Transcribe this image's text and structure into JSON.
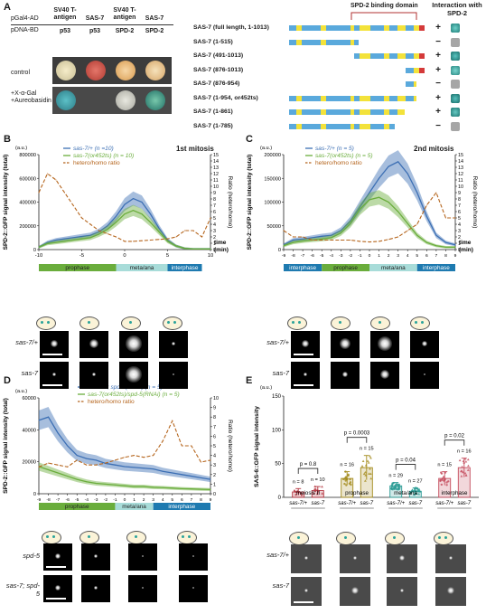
{
  "panelA": {
    "letter": "A",
    "row_labels": [
      "pGal4-AD",
      "pDNA-BD"
    ],
    "ad_columns": [
      "SV40 T-antigen",
      "SAS-7",
      "SV40 T-antigen",
      "SAS-7"
    ],
    "bd_columns": [
      "p53",
      "p53",
      "SPD-2",
      "SPD-2"
    ],
    "condition_labels": [
      "control",
      "+X-α-Gal +Aureobasidin"
    ],
    "domain_label": "SPD-2 binding domain",
    "interaction_header": "Interaction with SPD-2",
    "constructs": [
      {
        "name": "SAS-7 (full length, 1-1013)",
        "result": "+"
      },
      {
        "name": "SAS-7 (1-515)",
        "result": "−"
      },
      {
        "name": "SAS-7 (491-1013)",
        "result": "+"
      },
      {
        "name": "SAS-7 (876-1013)",
        "result": "+"
      },
      {
        "name": "SAS-7 (876-954)",
        "result": "−"
      },
      {
        "name": "SAS-7 (1-954, or452ts)",
        "result": "+"
      },
      {
        "name": "SAS-7 (1-861)",
        "result": "+"
      },
      {
        "name": "SAS-7 (1-785)",
        "result": "−"
      }
    ],
    "colors": {
      "blue": "#5aa9dc",
      "yellow": "#f3e23a",
      "red": "#d43a3a",
      "teal": "#2e8c87",
      "gray": "#a6a6a6"
    }
  },
  "panelB": {
    "letter": "B",
    "title": "1st mitosis",
    "row_labels": [
      "sas-7/+",
      "sas-7"
    ]
  },
  "panelC": {
    "letter": "C",
    "title": "2nd mitosis",
    "row_labels": [
      "sas-7/+",
      "sas-7"
    ]
  },
  "panelD": {
    "letter": "D",
    "row_labels": [
      "spd-5",
      "sas-7; spd-5"
    ]
  },
  "panelE": {
    "letter": "E",
    "row_labels": [
      "sas-7/+",
      "sas-7"
    ]
  },
  "chart_data": [
    {
      "id": "B",
      "type": "line",
      "ylabel": "SPD-2::GFP signal intensity (total)",
      "y_unit": "(a.u.)",
      "y2label": "Ratio (hetero/homo)",
      "xlabel": "time (min)",
      "xlim": [
        -10,
        10
      ],
      "ylim": [
        0,
        800000
      ],
      "y2lim": [
        0,
        15
      ],
      "xticks": [
        -10,
        -5,
        0,
        5,
        10
      ],
      "yticks": [
        "0",
        "200000",
        "400000",
        "600000",
        "800000"
      ],
      "y2ticks": [
        0,
        1,
        2,
        3,
        4,
        5,
        6,
        7,
        8,
        9,
        10,
        11,
        12,
        13,
        14,
        15
      ],
      "phases": [
        "prophase",
        "meta/ana",
        "interphase"
      ],
      "x": [
        -10,
        -9,
        -8,
        -7,
        -6,
        -5,
        -4,
        -3,
        -2,
        -1,
        0,
        1,
        2,
        3,
        4,
        5,
        6,
        7,
        8,
        9,
        10
      ],
      "series": [
        {
          "name": "sas-7/+ (n =10)",
          "color": "#3c6fb4",
          "values": [
            20000,
            60000,
            80000,
            90000,
            100000,
            110000,
            120000,
            150000,
            200000,
            280000,
            380000,
            430000,
            400000,
            300000,
            180000,
            80000,
            30000,
            10000,
            5000,
            5000,
            5000
          ]
        },
        {
          "name": "sas-7(or452ts) (n = 10)",
          "color": "#6aad3c",
          "values": [
            20000,
            50000,
            60000,
            70000,
            80000,
            90000,
            100000,
            130000,
            170000,
            230000,
            300000,
            330000,
            300000,
            230000,
            150000,
            70000,
            30000,
            10000,
            5000,
            5000,
            5000
          ]
        },
        {
          "name": "hetero/homo ratio",
          "color": "#b5651d",
          "axis": "right",
          "dashed": true,
          "values": [
            9,
            12,
            11,
            9,
            7,
            5,
            4,
            3,
            2.5,
            2,
            1.3,
            1.3,
            1.4,
            1.5,
            1.6,
            1.7,
            2,
            3,
            3,
            2,
            5
          ]
        }
      ]
    },
    {
      "id": "C",
      "type": "line",
      "ylabel": "SPD-2::GFP signal intensity (total)",
      "y_unit": "(a.u.)",
      "y2label": "Ratio (hetero/homo)",
      "xlabel": "time (min)",
      "xlim": [
        -9,
        9
      ],
      "ylim": [
        0,
        200000
      ],
      "y2lim": [
        0,
        15
      ],
      "xticks": [
        -9,
        -8,
        -7,
        -6,
        -5,
        -4,
        -3,
        -2,
        -1,
        0,
        1,
        2,
        3,
        4,
        5,
        6,
        7,
        8,
        9
      ],
      "yticks": [
        "0",
        "50000",
        "100000",
        "150000",
        "200000"
      ],
      "y2ticks": [
        0,
        1,
        2,
        3,
        4,
        5,
        6,
        7,
        8,
        9,
        10,
        11,
        12,
        13,
        14,
        15
      ],
      "phases": [
        "interphase",
        "prophase",
        "meta/ana",
        "interphase"
      ],
      "x": [
        -9,
        -8,
        -7,
        -6,
        -5,
        -4,
        -3,
        -2,
        -1,
        0,
        1,
        2,
        3,
        4,
        5,
        6,
        7,
        8,
        9
      ],
      "series": [
        {
          "name": "sas-7/+ (n = 5)",
          "color": "#3c6fb4",
          "values": [
            10000,
            20000,
            22000,
            25000,
            28000,
            30000,
            40000,
            60000,
            90000,
            120000,
            150000,
            175000,
            185000,
            160000,
            120000,
            70000,
            30000,
            15000,
            10000
          ]
        },
        {
          "name": "sas-7(or452ts) (n = 5)",
          "color": "#6aad3c",
          "values": [
            8000,
            15000,
            18000,
            20000,
            22000,
            25000,
            35000,
            55000,
            85000,
            105000,
            110000,
            100000,
            80000,
            55000,
            30000,
            15000,
            8000,
            5000,
            5000
          ]
        },
        {
          "name": "hetero/homo ratio",
          "color": "#b5651d",
          "axis": "right",
          "dashed": true,
          "values": [
            3,
            2,
            2,
            1.5,
            1.5,
            1.5,
            1.5,
            1.5,
            1.3,
            1.2,
            1.3,
            1.6,
            2,
            3,
            4,
            7,
            9,
            5,
            5
          ]
        }
      ]
    },
    {
      "id": "D",
      "type": "line",
      "ylabel": "SPD-2::GFP signal intensity (total)",
      "y_unit": "(a.u.)",
      "y2label": "Ratio (hetero/homo)",
      "xlim": [
        -9,
        9
      ],
      "ylim": [
        0,
        60000
      ],
      "y2lim": [
        0,
        10
      ],
      "xticks": [
        -9,
        -8,
        -7,
        -6,
        -5,
        -4,
        -3,
        -2,
        -1,
        0,
        1,
        2,
        3,
        4,
        5,
        6,
        7,
        8,
        9
      ],
      "yticks": [
        "0",
        "20000",
        "40000",
        "60000"
      ],
      "y2ticks": [
        0,
        1,
        2,
        3,
        4,
        5,
        6,
        7,
        8,
        9,
        10
      ],
      "phases": [
        "prophase",
        "meta/ana",
        "interphase"
      ],
      "x": [
        -9,
        -8,
        -7,
        -6,
        -5,
        -4,
        -3,
        -2,
        -1,
        0,
        1,
        2,
        3,
        4,
        5,
        6,
        7,
        8,
        9
      ],
      "series": [
        {
          "name": "sas-7/+; spd-5(RNAi) (n = 5)",
          "color": "#3c6fb4",
          "values": [
            46000,
            48000,
            38000,
            30000,
            24000,
            22000,
            21000,
            19000,
            18000,
            17000,
            16500,
            16000,
            15500,
            14000,
            13000,
            12000,
            11000,
            10000,
            9000
          ]
        },
        {
          "name": "sas-7(or452ts)/spd-5(RNAi) (n = 5)",
          "color": "#6aad3c",
          "values": [
            17000,
            15000,
            13000,
            11000,
            9000,
            7500,
            6500,
            6000,
            5500,
            5000,
            4500,
            4500,
            4000,
            3800,
            3500,
            3200,
            3000,
            2800,
            2600
          ]
        },
        {
          "name": "hetero/homo ratio",
          "color": "#b5651d",
          "axis": "right",
          "dashed": true,
          "values": [
            2.8,
            3.2,
            3,
            2.8,
            3.5,
            3,
            3,
            3.2,
            3.5,
            3.8,
            4,
            3.8,
            4,
            5.5,
            7.6,
            5,
            5,
            3.3,
            3.5
          ]
        }
      ]
    },
    {
      "id": "E",
      "type": "scatter",
      "ylabel": "SAS-6::GFP signal intensity",
      "y_unit": "(a.u.)",
      "ylim": [
        0,
        150
      ],
      "yticks": [
        "0",
        "50",
        "100",
        "150"
      ],
      "groups": [
        "meiosis II",
        "prophase",
        "meta/ana",
        "interphase"
      ],
      "categories": [
        "sas-7/+",
        "sas-7",
        "sas-7/+",
        "sas-7",
        "sas-7/+",
        "sas-7",
        "sas-7/+",
        "sas-7"
      ],
      "n": [
        8,
        10,
        16,
        15,
        29,
        27,
        15,
        16
      ],
      "means": [
        8,
        10,
        28,
        44,
        17,
        9,
        28,
        44
      ],
      "sd": [
        5,
        6,
        10,
        18,
        5,
        5,
        10,
        14
      ],
      "p_values": [
        "p = 0.8",
        "p = 0.0003",
        "p = 0.04",
        "p = 0.02"
      ],
      "colors": [
        "#b3313c",
        "#a38a1a",
        "#2c9c95",
        "#c44b5c"
      ]
    }
  ]
}
